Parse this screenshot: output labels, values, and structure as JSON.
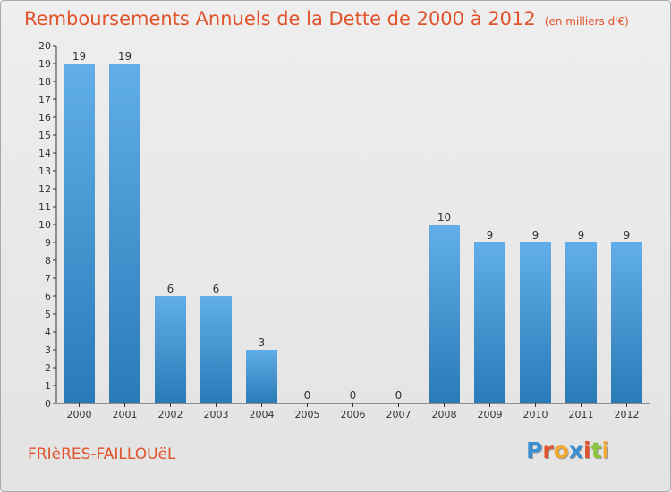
{
  "header": {
    "title": "Remboursements Annuels de la Dette de 2000 à 2012",
    "unit": "(en milliers d'€)"
  },
  "footer": {
    "commune": "FRIèRES-FAILLOUëL",
    "logo_text": "Proxiti",
    "logo_colors": [
      "#3b8fd1",
      "#e0532b",
      "#f2a72f",
      "#3b8fd1",
      "#e0532b",
      "#8cc63f",
      "#f2a72f"
    ]
  },
  "chart_data": {
    "type": "bar",
    "categories": [
      "2000",
      "2001",
      "2002",
      "2003",
      "2004",
      "2005",
      "2006",
      "2007",
      "2008",
      "2009",
      "2010",
      "2011",
      "2012"
    ],
    "values": [
      19,
      19,
      6,
      6,
      3,
      0,
      0,
      0,
      10,
      9,
      9,
      9,
      9
    ],
    "data_labels": [
      "19",
      "19",
      "6",
      "6",
      "3",
      "0",
      "0",
      "0",
      "10",
      "9",
      "9",
      "9",
      "9"
    ],
    "yticks": [
      "0",
      "1",
      "2",
      "3",
      "4",
      "5",
      "6",
      "7",
      "8",
      "9",
      "10",
      "11",
      "12",
      "13",
      "14",
      "15",
      "16",
      "17",
      "18",
      "19",
      "20"
    ],
    "ylim": [
      0,
      20
    ],
    "grid": false,
    "bar_color_top": "#61aee8",
    "bar_color_bottom": "#2a7ab8"
  }
}
